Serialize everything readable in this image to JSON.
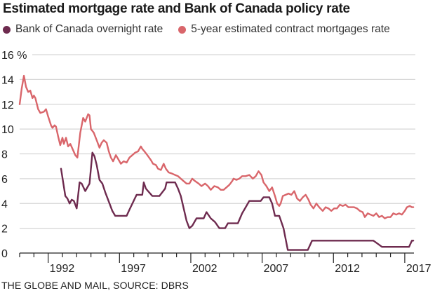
{
  "chart_data": {
    "type": "line",
    "title": "Estimated mortgage rate and Bank of Canada policy rate",
    "xlabel": "",
    "ylabel": "%",
    "ylim": [
      0,
      16
    ],
    "xlim": [
      1990,
      2017.7
    ],
    "grid": true,
    "legend_position": "top-left",
    "y_ticks": [
      {
        "value": 0,
        "label": "0"
      },
      {
        "value": 2,
        "label": "2"
      },
      {
        "value": 4,
        "label": "4"
      },
      {
        "value": 6,
        "label": "6"
      },
      {
        "value": 8,
        "label": "8"
      },
      {
        "value": 10,
        "label": "10"
      },
      {
        "value": 12,
        "label": "12"
      },
      {
        "value": 14,
        "label": "14"
      },
      {
        "value": 16,
        "label": "16 %"
      }
    ],
    "x_ticks": [
      {
        "value": 1992,
        "label": "1992"
      },
      {
        "value": 1997,
        "label": "1997"
      },
      {
        "value": 2002,
        "label": "2002"
      },
      {
        "value": 2007,
        "label": "2007"
      },
      {
        "value": 2012,
        "label": "2012"
      },
      {
        "value": 2017,
        "label": "2017"
      }
    ],
    "series": [
      {
        "name": "Bank of Canada overnight rate",
        "color": "#6e2b4f",
        "points": [
          [
            1992.9,
            6.8
          ],
          [
            1993.2,
            4.6
          ],
          [
            1993.35,
            4.4
          ],
          [
            1993.5,
            4.0
          ],
          [
            1993.65,
            4.3
          ],
          [
            1993.8,
            4.2
          ],
          [
            1993.9,
            3.9
          ],
          [
            1994.0,
            3.6
          ],
          [
            1994.2,
            5.7
          ],
          [
            1994.35,
            5.6
          ],
          [
            1994.6,
            5.0
          ],
          [
            1994.9,
            5.6
          ],
          [
            1995.1,
            8.1
          ],
          [
            1995.25,
            7.8
          ],
          [
            1995.4,
            7.1
          ],
          [
            1995.6,
            5.9
          ],
          [
            1995.8,
            5.6
          ],
          [
            1996.0,
            4.9
          ],
          [
            1996.3,
            4.0
          ],
          [
            1996.5,
            3.4
          ],
          [
            1996.7,
            3.0
          ],
          [
            1997.5,
            3.0
          ],
          [
            1997.7,
            3.5
          ],
          [
            1998.2,
            4.7
          ],
          [
            1998.6,
            4.7
          ],
          [
            1998.7,
            5.7
          ],
          [
            1998.85,
            5.2
          ],
          [
            1999.0,
            5.0
          ],
          [
            1999.3,
            4.6
          ],
          [
            1999.8,
            4.6
          ],
          [
            2000.2,
            5.2
          ],
          [
            2000.3,
            5.7
          ],
          [
            2000.9,
            5.7
          ],
          [
            2001.1,
            5.2
          ],
          [
            2001.3,
            4.6
          ],
          [
            2001.5,
            3.6
          ],
          [
            2001.7,
            2.6
          ],
          [
            2001.9,
            2.0
          ],
          [
            2002.1,
            2.2
          ],
          [
            2002.4,
            2.8
          ],
          [
            2002.9,
            2.8
          ],
          [
            2003.1,
            3.3
          ],
          [
            2003.4,
            2.8
          ],
          [
            2003.7,
            2.5
          ],
          [
            2004.0,
            2.0
          ],
          [
            2004.4,
            2.0
          ],
          [
            2004.6,
            2.4
          ],
          [
            2005.3,
            2.4
          ],
          [
            2005.6,
            3.2
          ],
          [
            2005.85,
            3.7
          ],
          [
            2006.1,
            4.2
          ],
          [
            2006.9,
            4.2
          ],
          [
            2007.1,
            4.5
          ],
          [
            2007.5,
            4.5
          ],
          [
            2007.7,
            4.0
          ],
          [
            2007.9,
            3.0
          ],
          [
            2008.2,
            3.0
          ],
          [
            2008.5,
            2.0
          ],
          [
            2008.8,
            0.25
          ],
          [
            2010.2,
            0.25
          ],
          [
            2010.5,
            1.0
          ],
          [
            2014.8,
            1.0
          ],
          [
            2015.1,
            0.75
          ],
          [
            2015.4,
            0.5
          ],
          [
            2017.3,
            0.5
          ],
          [
            2017.5,
            1.0
          ],
          [
            2017.6,
            1.0
          ]
        ]
      },
      {
        "name": "5-year estimated contract mortgages rate",
        "color": "#d9666b",
        "points": [
          [
            1990.0,
            12.0
          ],
          [
            1990.15,
            13.3
          ],
          [
            1990.3,
            14.3
          ],
          [
            1990.45,
            13.4
          ],
          [
            1990.6,
            13.0
          ],
          [
            1990.75,
            13.1
          ],
          [
            1990.9,
            12.5
          ],
          [
            1991.0,
            12.7
          ],
          [
            1991.1,
            12.5
          ],
          [
            1991.3,
            11.6
          ],
          [
            1991.45,
            11.3
          ],
          [
            1991.7,
            11.4
          ],
          [
            1991.85,
            11.6
          ],
          [
            1992.0,
            11.0
          ],
          [
            1992.2,
            10.3
          ],
          [
            1992.3,
            10.1
          ],
          [
            1992.45,
            10.3
          ],
          [
            1992.55,
            10.2
          ],
          [
            1992.7,
            9.4
          ],
          [
            1992.85,
            8.7
          ],
          [
            1993.0,
            9.3
          ],
          [
            1993.1,
            8.8
          ],
          [
            1993.25,
            9.3
          ],
          [
            1993.4,
            8.6
          ],
          [
            1993.55,
            8.8
          ],
          [
            1993.75,
            8.3
          ],
          [
            1993.9,
            7.9
          ],
          [
            1994.05,
            7.7
          ],
          [
            1994.25,
            9.7
          ],
          [
            1994.45,
            10.9
          ],
          [
            1994.6,
            10.6
          ],
          [
            1994.8,
            11.2
          ],
          [
            1994.9,
            11.1
          ],
          [
            1995.0,
            10.0
          ],
          [
            1995.2,
            9.7
          ],
          [
            1995.4,
            9.1
          ],
          [
            1995.6,
            8.5
          ],
          [
            1995.75,
            8.9
          ],
          [
            1995.9,
            9.1
          ],
          [
            1996.1,
            8.9
          ],
          [
            1996.25,
            8.2
          ],
          [
            1996.4,
            7.7
          ],
          [
            1996.55,
            7.4
          ],
          [
            1996.75,
            7.9
          ],
          [
            1996.9,
            7.6
          ],
          [
            1997.1,
            7.2
          ],
          [
            1997.3,
            7.4
          ],
          [
            1997.5,
            7.3
          ],
          [
            1997.7,
            7.7
          ],
          [
            1997.9,
            7.9
          ],
          [
            1998.1,
            8.1
          ],
          [
            1998.3,
            8.2
          ],
          [
            1998.5,
            8.6
          ],
          [
            1998.6,
            8.4
          ],
          [
            1998.75,
            8.2
          ],
          [
            1998.95,
            7.9
          ],
          [
            1999.2,
            7.5
          ],
          [
            1999.35,
            7.2
          ],
          [
            1999.55,
            7.1
          ],
          [
            1999.7,
            6.8
          ],
          [
            1999.9,
            6.7
          ],
          [
            2000.1,
            7.2
          ],
          [
            2000.25,
            6.8
          ],
          [
            2000.45,
            6.5
          ],
          [
            2000.7,
            6.4
          ],
          [
            2000.9,
            6.3
          ],
          [
            2001.1,
            6.2
          ],
          [
            2001.3,
            6.0
          ],
          [
            2001.5,
            5.8
          ],
          [
            2001.7,
            5.6
          ],
          [
            2001.9,
            5.6
          ],
          [
            2002.1,
            6.0
          ],
          [
            2002.3,
            5.8
          ],
          [
            2002.55,
            5.6
          ],
          [
            2002.75,
            5.4
          ],
          [
            2003.0,
            5.6
          ],
          [
            2003.2,
            5.4
          ],
          [
            2003.4,
            5.1
          ],
          [
            2003.65,
            5.4
          ],
          [
            2003.9,
            5.3
          ],
          [
            2004.1,
            5.1
          ],
          [
            2004.3,
            5.1
          ],
          [
            2004.5,
            5.3
          ],
          [
            2004.7,
            5.5
          ],
          [
            2004.9,
            5.8
          ],
          [
            2005.0,
            6.0
          ],
          [
            2005.2,
            5.9
          ],
          [
            2005.4,
            6.0
          ],
          [
            2005.6,
            6.2
          ],
          [
            2005.85,
            6.2
          ],
          [
            2006.1,
            6.3
          ],
          [
            2006.35,
            6.0
          ],
          [
            2006.55,
            6.2
          ],
          [
            2006.75,
            6.6
          ],
          [
            2006.95,
            6.3
          ],
          [
            2007.1,
            5.7
          ],
          [
            2007.3,
            5.4
          ],
          [
            2007.5,
            5.0
          ],
          [
            2007.7,
            5.3
          ],
          [
            2007.9,
            4.6
          ],
          [
            2008.05,
            4.0
          ],
          [
            2008.2,
            3.8
          ],
          [
            2008.3,
            4.0
          ],
          [
            2008.45,
            4.6
          ],
          [
            2008.65,
            4.7
          ],
          [
            2008.85,
            4.8
          ],
          [
            2009.05,
            4.7
          ],
          [
            2009.25,
            5.0
          ],
          [
            2009.45,
            4.4
          ],
          [
            2009.65,
            4.2
          ],
          [
            2009.85,
            4.5
          ],
          [
            2010.05,
            4.7
          ],
          [
            2010.25,
            4.3
          ],
          [
            2010.4,
            3.9
          ],
          [
            2010.6,
            3.6
          ],
          [
            2010.8,
            4.0
          ],
          [
            2011.0,
            3.7
          ],
          [
            2011.25,
            3.4
          ],
          [
            2011.45,
            3.7
          ],
          [
            2011.65,
            3.6
          ],
          [
            2011.85,
            3.4
          ],
          [
            2012.05,
            3.6
          ],
          [
            2012.25,
            3.6
          ],
          [
            2012.45,
            3.9
          ],
          [
            2012.65,
            3.8
          ],
          [
            2012.85,
            3.9
          ],
          [
            2013.05,
            3.7
          ],
          [
            2013.25,
            3.7
          ],
          [
            2013.45,
            3.7
          ],
          [
            2013.65,
            3.6
          ],
          [
            2013.85,
            3.4
          ],
          [
            2014.05,
            3.3
          ],
          [
            2014.2,
            2.9
          ],
          [
            2014.4,
            3.2
          ],
          [
            2014.6,
            3.1
          ],
          [
            2014.8,
            3.0
          ],
          [
            2015.0,
            3.2
          ],
          [
            2015.2,
            2.9
          ],
          [
            2015.4,
            3.0
          ],
          [
            2015.6,
            2.8
          ],
          [
            2015.8,
            2.9
          ],
          [
            2016.0,
            2.9
          ],
          [
            2016.2,
            3.2
          ],
          [
            2016.4,
            3.1
          ],
          [
            2016.6,
            3.2
          ],
          [
            2016.8,
            3.1
          ],
          [
            2017.0,
            3.4
          ],
          [
            2017.15,
            3.7
          ],
          [
            2017.35,
            3.8
          ],
          [
            2017.5,
            3.7
          ],
          [
            2017.6,
            3.7
          ]
        ]
      }
    ]
  },
  "legend": {
    "items": [
      {
        "label": "Bank of Canada overnight rate",
        "color": "#6e2b4f"
      },
      {
        "label": "5-year estimated contract mortgages rate",
        "color": "#d9666b"
      }
    ]
  },
  "footer": {
    "source": "THE GLOBE AND MAIL, SOURCE: DBRS"
  }
}
